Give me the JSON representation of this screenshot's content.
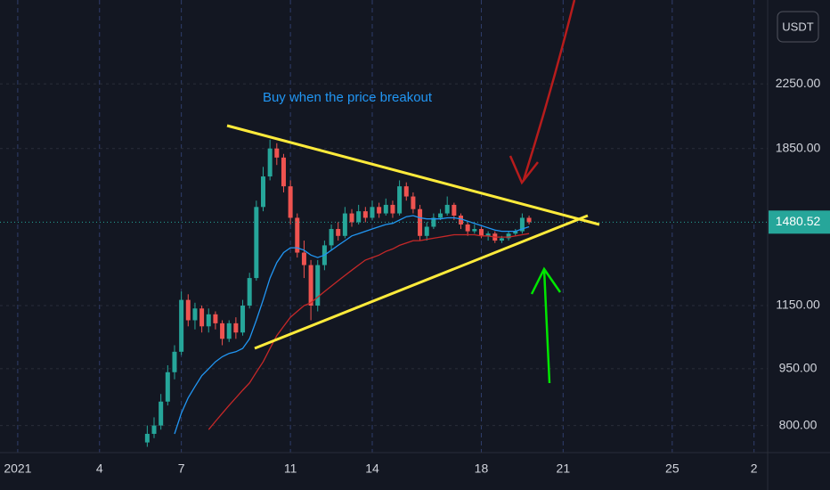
{
  "chart_data": {
    "type": "candlestick",
    "annotation": "Buy when the price breakout",
    "currency": "USDT",
    "log_scale": true,
    "grid": true,
    "up_color": "#26a69a",
    "down_color": "#ef5350",
    "x": [
      5.75,
      6,
      6.25,
      6.5,
      6.75,
      7,
      7.25,
      7.5,
      7.75,
      8,
      8.25,
      8.5,
      8.75,
      9,
      9.25,
      9.5,
      9.75,
      10,
      10.25,
      10.5,
      10.75,
      11,
      11.25,
      11.5,
      11.75,
      12,
      12.25,
      12.5,
      12.75,
      13,
      13.25,
      13.5,
      13.75,
      14,
      14.25,
      14.5,
      14.75,
      15,
      15.25,
      15.5,
      15.75,
      16,
      16.25,
      16.5,
      16.75,
      17,
      17.25,
      17.5,
      17.75,
      18,
      18.25,
      18.5,
      18.75,
      19,
      19.25,
      19.5,
      19.75
    ],
    "candles": [
      [
        760,
        800,
        750,
        780
      ],
      [
        780,
        820,
        770,
        800
      ],
      [
        800,
        880,
        790,
        860
      ],
      [
        860,
        960,
        850,
        940
      ],
      [
        940,
        1020,
        920,
        1000
      ],
      [
        1000,
        1200,
        990,
        1170
      ],
      [
        1170,
        1190,
        1080,
        1100
      ],
      [
        1100,
        1160,
        1070,
        1140
      ],
      [
        1140,
        1150,
        1060,
        1080
      ],
      [
        1080,
        1140,
        1060,
        1120
      ],
      [
        1120,
        1130,
        1070,
        1090
      ],
      [
        1090,
        1100,
        1020,
        1040
      ],
      [
        1040,
        1100,
        1030,
        1090
      ],
      [
        1090,
        1110,
        1040,
        1060
      ],
      [
        1060,
        1170,
        1050,
        1150
      ],
      [
        1150,
        1270,
        1140,
        1250
      ],
      [
        1250,
        1580,
        1240,
        1550
      ],
      [
        1550,
        1750,
        1530,
        1700
      ],
      [
        1700,
        1900,
        1680,
        1850
      ],
      [
        1850,
        1880,
        1760,
        1800
      ],
      [
        1800,
        1820,
        1620,
        1650
      ],
      [
        1650,
        1680,
        1470,
        1500
      ],
      [
        1500,
        1520,
        1330,
        1350
      ],
      [
        1350,
        1400,
        1250,
        1300
      ],
      [
        1300,
        1320,
        1100,
        1150
      ],
      [
        1150,
        1320,
        1130,
        1300
      ],
      [
        1300,
        1400,
        1280,
        1380
      ],
      [
        1380,
        1470,
        1360,
        1450
      ],
      [
        1450,
        1480,
        1400,
        1420
      ],
      [
        1420,
        1550,
        1410,
        1520
      ],
      [
        1520,
        1540,
        1460,
        1480
      ],
      [
        1480,
        1560,
        1470,
        1530
      ],
      [
        1530,
        1550,
        1480,
        1500
      ],
      [
        1500,
        1580,
        1490,
        1550
      ],
      [
        1550,
        1570,
        1500,
        1520
      ],
      [
        1520,
        1590,
        1510,
        1560
      ],
      [
        1560,
        1580,
        1500,
        1520
      ],
      [
        1520,
        1680,
        1510,
        1650
      ],
      [
        1650,
        1670,
        1580,
        1600
      ],
      [
        1600,
        1620,
        1520,
        1540
      ],
      [
        1540,
        1560,
        1400,
        1420
      ],
      [
        1420,
        1480,
        1400,
        1460
      ],
      [
        1460,
        1520,
        1450,
        1500
      ],
      [
        1500,
        1540,
        1490,
        1520
      ],
      [
        1520,
        1600,
        1510,
        1560
      ],
      [
        1560,
        1570,
        1490,
        1510
      ],
      [
        1510,
        1520,
        1450,
        1470
      ],
      [
        1470,
        1480,
        1420,
        1440
      ],
      [
        1440,
        1470,
        1430,
        1450
      ],
      [
        1450,
        1460,
        1410,
        1420
      ],
      [
        1420,
        1440,
        1400,
        1430
      ],
      [
        1430,
        1440,
        1390,
        1400
      ],
      [
        1400,
        1420,
        1390,
        1410
      ],
      [
        1410,
        1440,
        1400,
        1430
      ],
      [
        1430,
        1450,
        1420,
        1440
      ],
      [
        1440,
        1520,
        1430,
        1500
      ],
      [
        1500,
        1510,
        1470,
        1480
      ]
    ],
    "series": [
      {
        "color": "#2196f3",
        "values": [
          null,
          null,
          null,
          null,
          780,
          830,
          870,
          900,
          930,
          950,
          970,
          985,
          995,
          1000,
          1010,
          1040,
          1100,
          1170,
          1250,
          1310,
          1350,
          1370,
          1370,
          1360,
          1340,
          1330,
          1340,
          1360,
          1380,
          1400,
          1420,
          1430,
          1440,
          1450,
          1460,
          1470,
          1475,
          1490,
          1505,
          1510,
          1500,
          1495,
          1495,
          1495,
          1500,
          1500,
          1495,
          1485,
          1475,
          1465,
          1455,
          1445,
          1440,
          1440,
          1440,
          1450,
          1460
        ]
      },
      {
        "color": "#c62828",
        "values": [
          null,
          null,
          null,
          null,
          null,
          null,
          null,
          null,
          null,
          790,
          810,
          830,
          850,
          870,
          890,
          910,
          940,
          970,
          1010,
          1050,
          1080,
          1110,
          1130,
          1150,
          1160,
          1180,
          1200,
          1220,
          1240,
          1260,
          1280,
          1300,
          1320,
          1330,
          1340,
          1355,
          1365,
          1380,
          1390,
          1400,
          1400,
          1405,
          1410,
          1415,
          1420,
          1425,
          1425,
          1425,
          1425,
          1420,
          1420,
          1415,
          1415,
          1415,
          1420,
          1425,
          1430
        ]
      }
    ],
    "last_price": 1480.52,
    "xlim": [
      0.35,
      28.5
    ],
    "xticks": [
      {
        "value": 1,
        "label": "2021"
      },
      4,
      7,
      11,
      14,
      18,
      21,
      25,
      {
        "value": 28,
        "label": "2"
      }
    ],
    "ylim": [
      737,
      2900
    ],
    "yticks": [
      {
        "value": 800,
        "label": "800.00"
      },
      {
        "value": 950,
        "label": "950.00"
      },
      {
        "value": 1150,
        "label": "1150.00"
      },
      {
        "value": 1850,
        "label": "1850.00"
      },
      {
        "value": 2250,
        "label": "2250.00"
      }
    ]
  }
}
